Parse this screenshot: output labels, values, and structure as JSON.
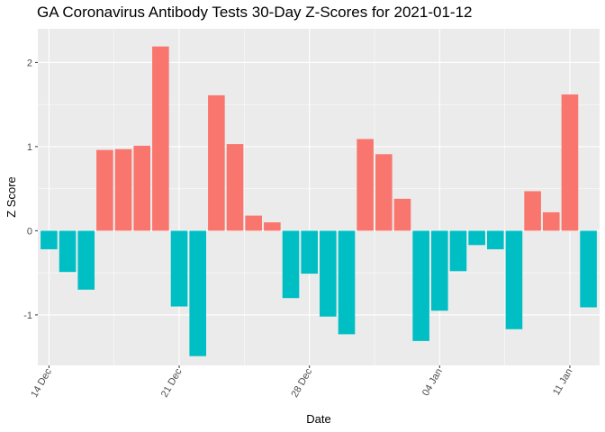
{
  "chart_data": {
    "type": "bar",
    "title": "GA Coronavirus Antibody Tests 30-Day Z-Scores for 2021-01-12",
    "xlabel": "Date",
    "ylabel": "Z Score",
    "dates": [
      "2020-12-14",
      "2020-12-15",
      "2020-12-16",
      "2020-12-17",
      "2020-12-18",
      "2020-12-19",
      "2020-12-20",
      "2020-12-21",
      "2020-12-22",
      "2020-12-23",
      "2020-12-24",
      "2020-12-25",
      "2020-12-26",
      "2020-12-27",
      "2020-12-28",
      "2020-12-29",
      "2020-12-30",
      "2020-12-31",
      "2021-01-01",
      "2021-01-02",
      "2021-01-03",
      "2021-01-04",
      "2021-01-05",
      "2021-01-06",
      "2021-01-07",
      "2021-01-08",
      "2021-01-09",
      "2021-01-10",
      "2021-01-11",
      "2021-01-12"
    ],
    "values": [
      -0.22,
      -0.49,
      -0.7,
      0.96,
      0.97,
      1.01,
      2.19,
      -0.9,
      -1.49,
      1.61,
      1.03,
      0.18,
      0.1,
      -0.8,
      -0.51,
      -1.02,
      -1.23,
      1.09,
      0.91,
      0.38,
      -1.31,
      -0.95,
      -0.48,
      -0.17,
      -0.22,
      -1.17,
      0.47,
      0.22,
      1.62,
      -0.91
    ],
    "x_ticks": [
      {
        "date": "2020-12-14",
        "label": "14 Dec"
      },
      {
        "date": "2020-12-21",
        "label": "21 Dec"
      },
      {
        "date": "2020-12-28",
        "label": "28 Dec"
      },
      {
        "date": "2021-01-04",
        "label": "04 Jan"
      },
      {
        "date": "2021-01-11",
        "label": "11 Jan"
      }
    ],
    "y_ticks": [
      -1,
      0,
      1,
      2
    ],
    "ylim": [
      -1.6,
      2.4
    ],
    "grid": true,
    "colors": {
      "positive": "#F8766D",
      "negative": "#00BFC4",
      "panel": "#EBEBEB",
      "grid_major": "#FFFFFF"
    }
  }
}
